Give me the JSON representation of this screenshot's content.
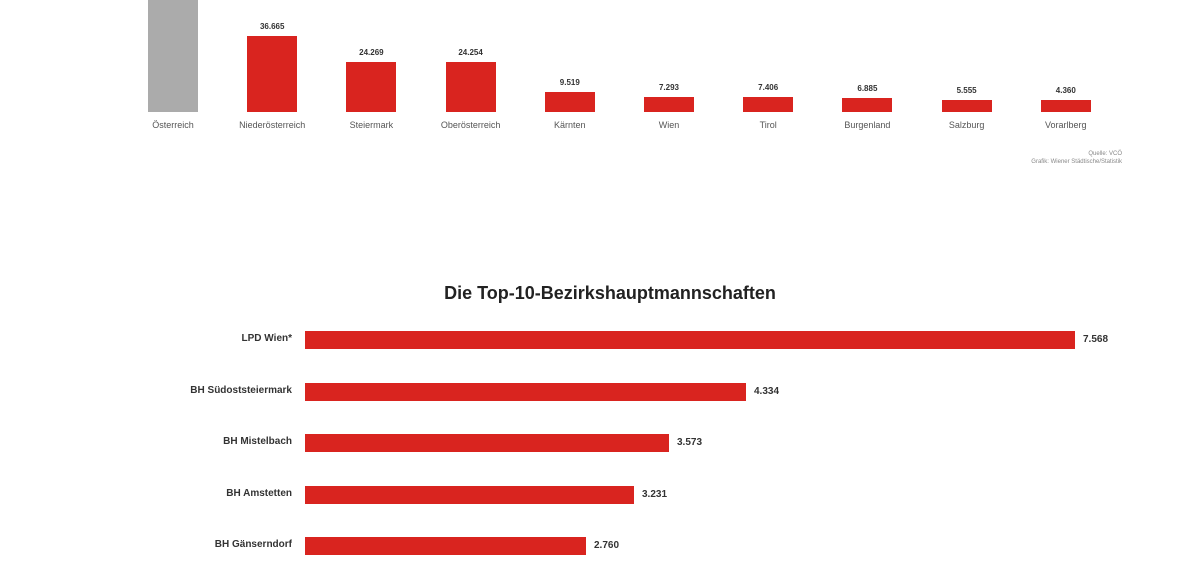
{
  "colors": {
    "highlight": "#d9241f",
    "national": "#ababab"
  },
  "top_chart": {
    "categories": [
      "Österreich",
      "Niederösterreich",
      "Steiermark",
      "Oberösterreich",
      "Kärnten",
      "Wien",
      "Tirol",
      "Burgenland",
      "Salzburg",
      "Vorarlberg"
    ],
    "value_labels": [
      "",
      "36.665",
      "24.269",
      "24.254",
      "9.519",
      "7.293",
      "7.406",
      "6.885",
      "5.555",
      "4.360"
    ],
    "source_line1": "Quelle: VCÖ",
    "source_line2": "Grafik: Wiener Städtische/Statistik"
  },
  "bottom_chart": {
    "title": "Die Top-10-Bezirkshauptmannschaften",
    "rows": [
      {
        "label": "LPD Wien*",
        "value": "7.568"
      },
      {
        "label": "BH Südoststeiermark",
        "value": "4.334"
      },
      {
        "label": "BH Mistelbach",
        "value": "3.573"
      },
      {
        "label": "BH Amstetten",
        "value": "3.231"
      },
      {
        "label": "BH Gänserndorf",
        "value": "2.760"
      }
    ]
  },
  "chart_data": [
    {
      "type": "bar",
      "title": "",
      "categories": [
        "Österreich",
        "Niederösterreich",
        "Steiermark",
        "Oberösterreich",
        "Kärnten",
        "Wien",
        "Tirol",
        "Burgenland",
        "Salzburg",
        "Vorarlberg"
      ],
      "values": [
        null,
        36665,
        24269,
        24254,
        9519,
        7293,
        7406,
        6885,
        5555,
        4360
      ],
      "xlabel": "",
      "ylabel": "",
      "annotations": [
        "Österreich bar (grey) extends beyond visible top",
        "Quelle: VCÖ",
        "Grafik: Wiener Städtische/Statistik"
      ],
      "grid": false
    },
    {
      "type": "bar",
      "orientation": "horizontal",
      "title": "Die Top-10-Bezirkshauptmannschaften",
      "categories": [
        "LPD Wien*",
        "BH Südoststeiermark",
        "BH Mistelbach",
        "BH Amstetten",
        "BH Gänserndorf"
      ],
      "values": [
        7568,
        4334,
        3573,
        3231,
        2760
      ],
      "xlabel": "",
      "ylabel": "",
      "grid": false
    }
  ]
}
